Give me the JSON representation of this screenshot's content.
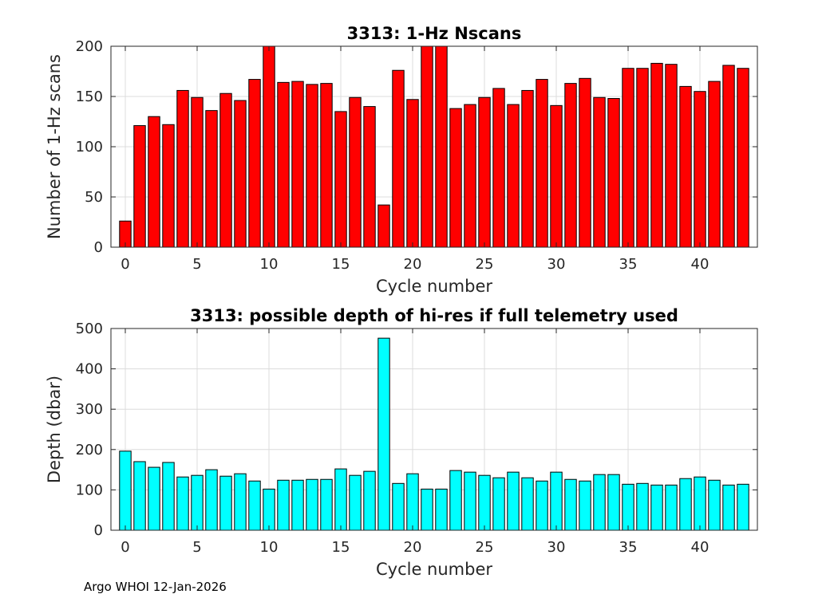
{
  "chart_data": [
    {
      "type": "bar",
      "title": "3313: 1-Hz Nscans",
      "xlabel": "Cycle number",
      "ylabel": "Number of 1-Hz scans",
      "xlim": [
        -1,
        44
      ],
      "ylim": [
        0,
        200
      ],
      "xticks": [
        0,
        5,
        10,
        15,
        20,
        25,
        30,
        35,
        40
      ],
      "yticks": [
        0,
        50,
        100,
        150,
        200
      ],
      "grid": true,
      "bar_color": "#ff0000",
      "x": [
        0,
        1,
        2,
        3,
        4,
        5,
        6,
        7,
        8,
        9,
        10,
        11,
        12,
        13,
        14,
        15,
        16,
        17,
        18,
        19,
        20,
        21,
        22,
        23,
        24,
        25,
        26,
        27,
        28,
        29,
        30,
        31,
        32,
        33,
        34,
        35,
        36,
        37,
        38,
        39,
        40,
        41,
        42,
        43
      ],
      "values": [
        26,
        121,
        130,
        122,
        156,
        149,
        136,
        153,
        146,
        167,
        200,
        164,
        165,
        162,
        163,
        135,
        149,
        140,
        42,
        176,
        147,
        200,
        200,
        138,
        142,
        149,
        158,
        142,
        156,
        167,
        141,
        163,
        168,
        149,
        148,
        178,
        178,
        183,
        182,
        160,
        155,
        165,
        181,
        178
      ]
    },
    {
      "type": "bar",
      "title": "3313: possible depth of hi-res if full telemetry used",
      "xlabel": "Cycle number",
      "ylabel": "Depth (dbar)",
      "xlim": [
        -1,
        44
      ],
      "ylim": [
        0,
        500
      ],
      "xticks": [
        0,
        5,
        10,
        15,
        20,
        25,
        30,
        35,
        40
      ],
      "yticks": [
        0,
        100,
        200,
        300,
        400,
        500
      ],
      "grid": true,
      "bar_color": "#00ffff",
      "x": [
        0,
        1,
        2,
        3,
        4,
        5,
        6,
        7,
        8,
        9,
        10,
        11,
        12,
        13,
        14,
        15,
        16,
        17,
        18,
        19,
        20,
        21,
        22,
        23,
        24,
        25,
        26,
        27,
        28,
        29,
        30,
        31,
        32,
        33,
        34,
        35,
        36,
        37,
        38,
        39,
        40,
        41,
        42,
        43
      ],
      "values": [
        196,
        170,
        156,
        168,
        132,
        136,
        150,
        134,
        140,
        122,
        102,
        124,
        124,
        126,
        126,
        152,
        136,
        146,
        476,
        116,
        140,
        102,
        102,
        148,
        144,
        136,
        130,
        144,
        130,
        122,
        144,
        126,
        122,
        138,
        138,
        114,
        116,
        112,
        112,
        128,
        132,
        124,
        112,
        114
      ]
    }
  ],
  "footer": "Argo WHOI 12-Jan-2026"
}
